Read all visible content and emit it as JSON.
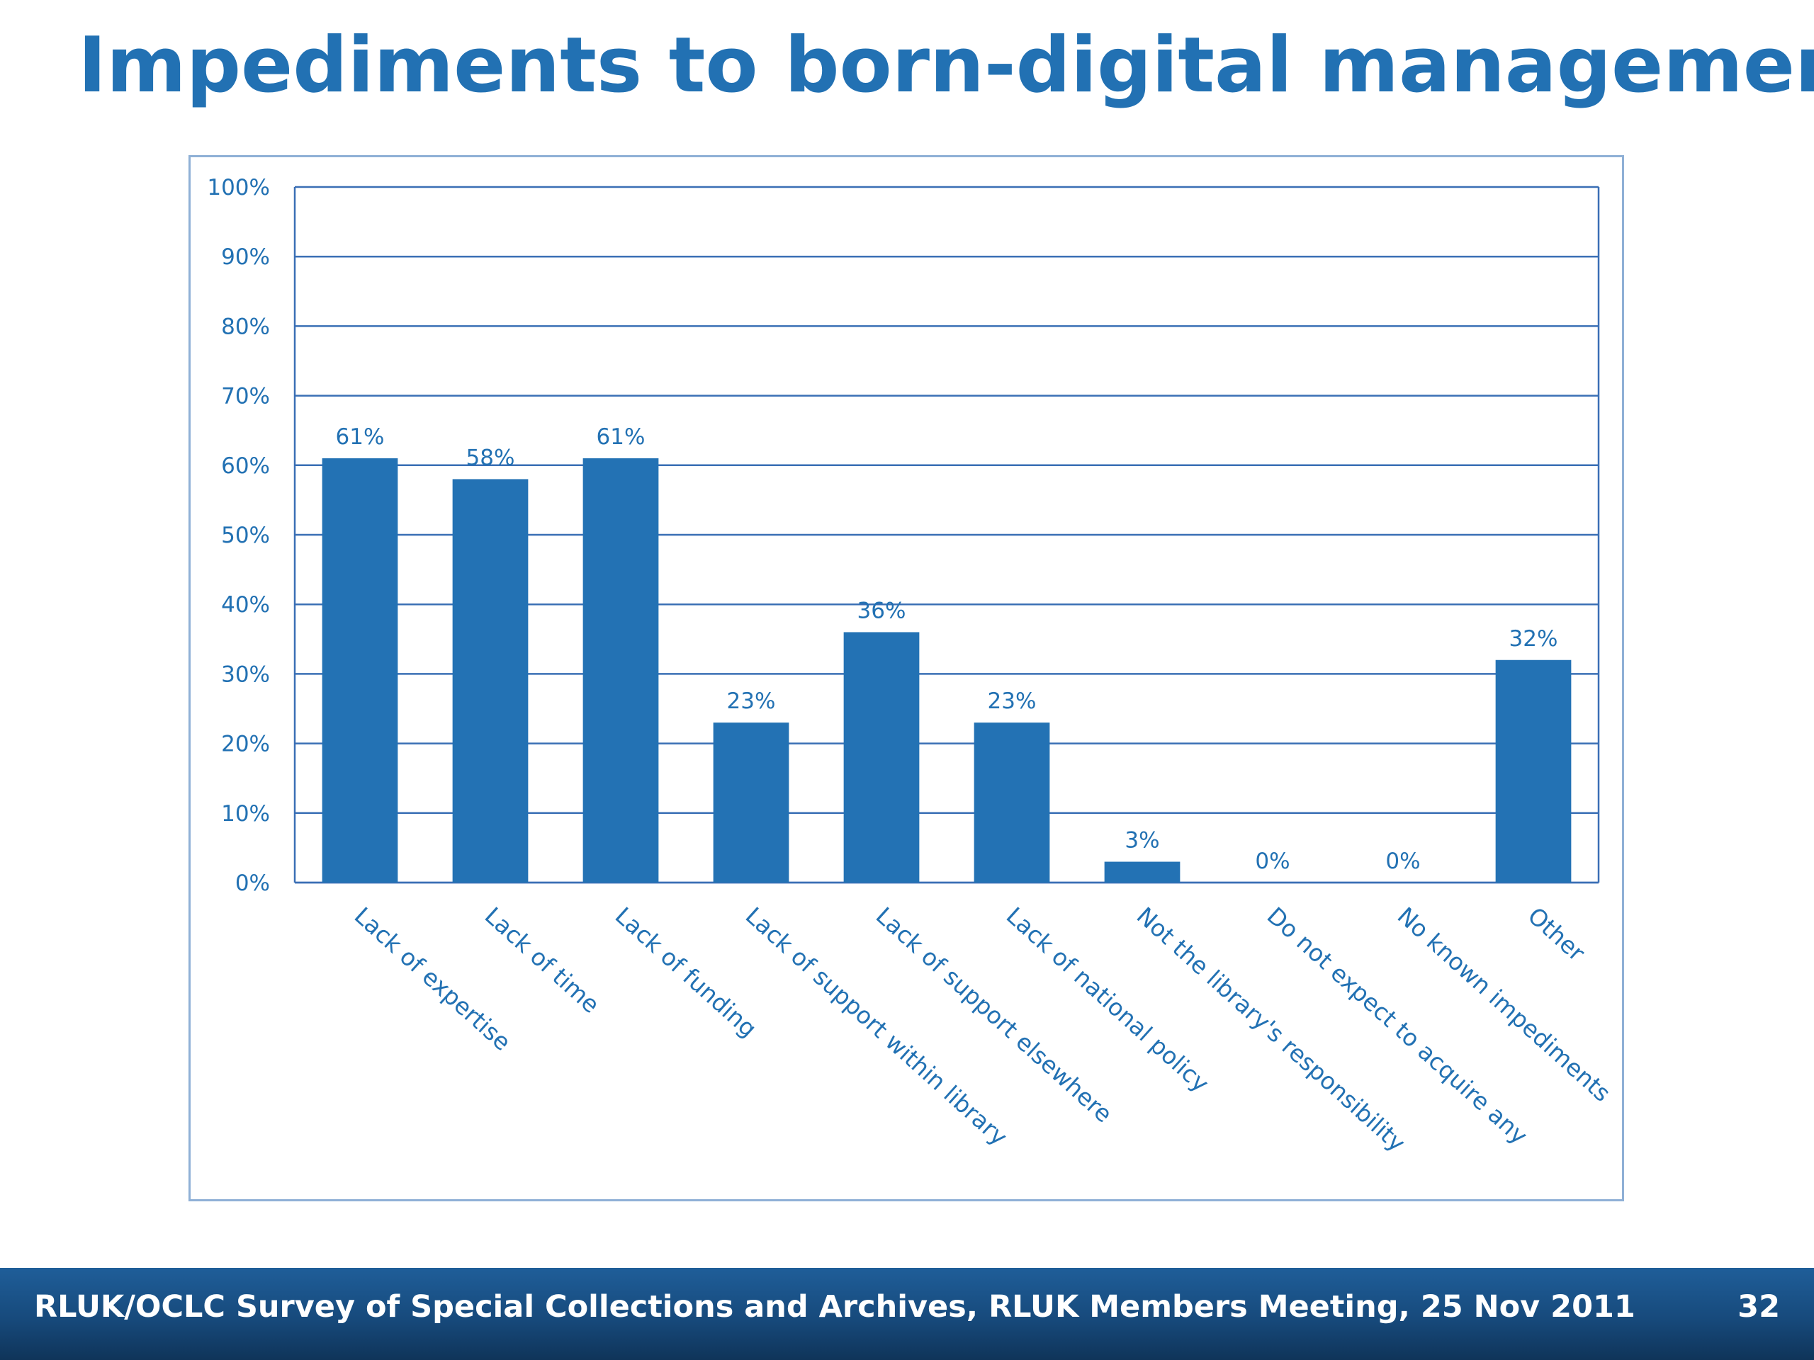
{
  "slide": {
    "title": "Impediments to born-digital management",
    "footer": "RLUK/OCLC Survey of Special Collections and Archives, RLUK Members Meeting, 25 Nov 2011",
    "page_number": "32"
  },
  "colors": {
    "title": "#2271b3",
    "bar": "#2372b4",
    "axis_text": "#2271b3",
    "gridline": "#3a6fb5",
    "footer_bg": "#1a5389"
  },
  "chart_data": {
    "type": "bar",
    "categories": [
      "Lack of expertise",
      "Lack of time",
      "Lack of funding",
      "Lack of  support within library",
      "Lack of support elsewhere",
      "Lack of national policy",
      "Not the library's responsibility",
      "Do not expect to acquire any",
      "No known impediments",
      "Other"
    ],
    "values": [
      61,
      58,
      61,
      23,
      36,
      23,
      3,
      0,
      0,
      32
    ],
    "data_labels": [
      "61%",
      "58%",
      "61%",
      "23%",
      "36%",
      "23%",
      "3%",
      "0%",
      "0%",
      "32%"
    ],
    "y_ticks": [
      "0%",
      "10%",
      "20%",
      "30%",
      "40%",
      "50%",
      "60%",
      "70%",
      "80%",
      "90%",
      "100%"
    ],
    "ylim": [
      0,
      100
    ],
    "grid": true,
    "legend": "none"
  }
}
